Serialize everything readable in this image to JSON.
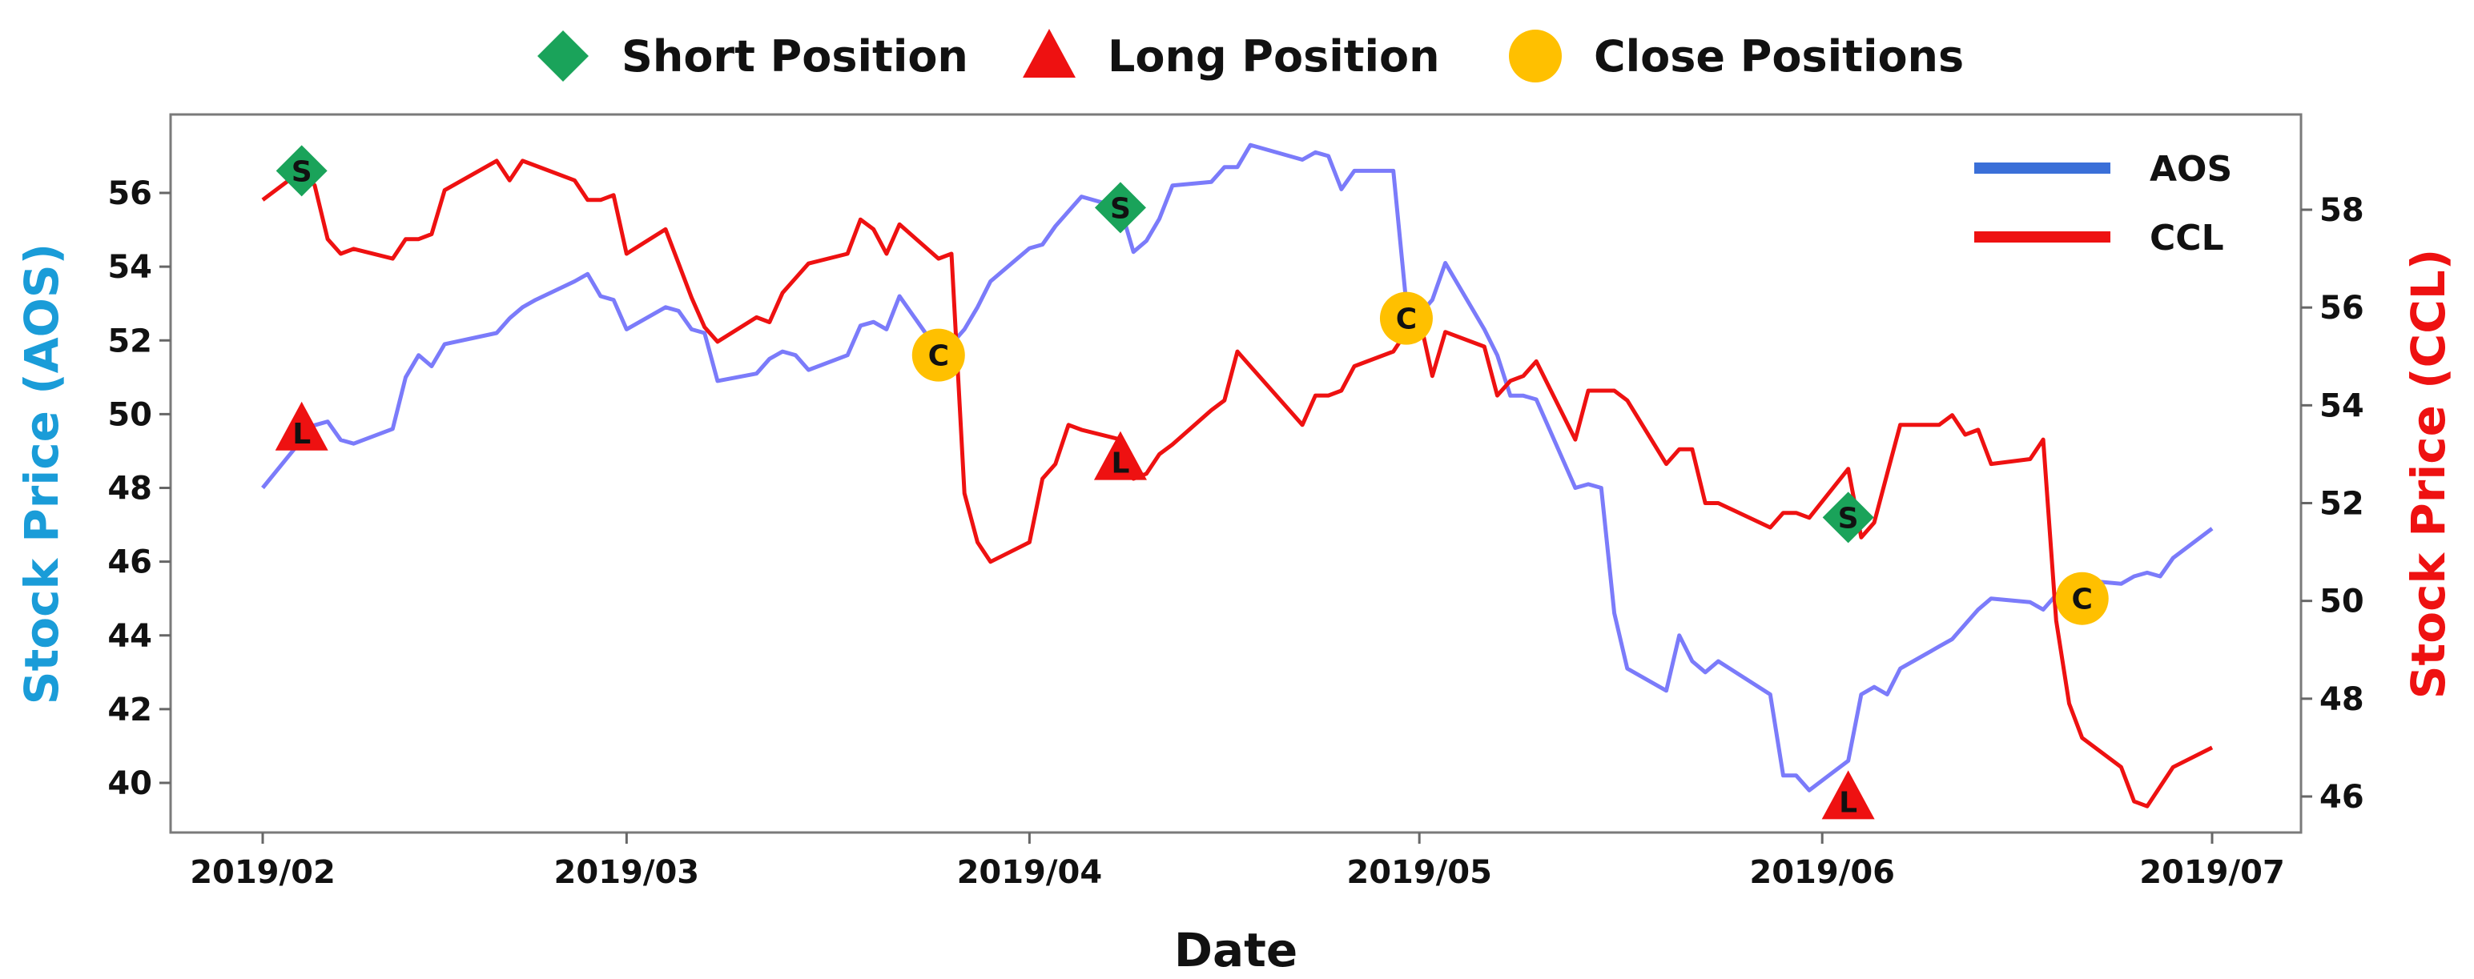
{
  "legend": {
    "items": [
      {
        "label": "Short Position",
        "marker": "diamond",
        "color": "#1aa35a"
      },
      {
        "label": "Long Position",
        "marker": "triangle",
        "color": "#ee1111"
      },
      {
        "label": "Close Positions",
        "marker": "circle",
        "color": "#ffc000"
      }
    ]
  },
  "chart_data": {
    "type": "line",
    "title": "",
    "xlabel": "Date",
    "ylabel_left": "Stock Price (AOS)",
    "ylabel_right": "Stock Price (CCL)",
    "ylabel_left_color": "#1a9cd8",
    "ylabel_right_color": "#ee1111",
    "x_start": "2019-02-01",
    "x_end": "2019-07-01",
    "x_ticks": [
      {
        "date": "2019-02-01",
        "label": "2019/02"
      },
      {
        "date": "2019-03-01",
        "label": "2019/03"
      },
      {
        "date": "2019-04-01",
        "label": "2019/04"
      },
      {
        "date": "2019-05-01",
        "label": "2019/05"
      },
      {
        "date": "2019-06-01",
        "label": "2019/06"
      },
      {
        "date": "2019-07-01",
        "label": "2019/07"
      }
    ],
    "ylim_left": [
      38.5,
      57.5
    ],
    "ylim_right": [
      45.3,
      59.7
    ],
    "yticks_left": [
      40,
      42,
      44,
      46,
      48,
      50,
      52,
      54,
      56
    ],
    "yticks_right": [
      46,
      48,
      50,
      52,
      54,
      56,
      58
    ],
    "grid": false,
    "series_legend_placement": "top-right",
    "series": [
      {
        "name": "AOS",
        "axis": "left",
        "color": "#7b7bfa",
        "legend_color": "#3a6fd8",
        "points": [
          [
            "2019-02-01",
            48.0
          ],
          [
            "2019-02-04",
            49.3
          ],
          [
            "2019-02-05",
            49.7
          ],
          [
            "2019-02-06",
            49.8
          ],
          [
            "2019-02-07",
            49.3
          ],
          [
            "2019-02-08",
            49.2
          ],
          [
            "2019-02-11",
            49.6
          ],
          [
            "2019-02-12",
            51.0
          ],
          [
            "2019-02-13",
            51.6
          ],
          [
            "2019-02-14",
            51.3
          ],
          [
            "2019-02-15",
            51.9
          ],
          [
            "2019-02-19",
            52.2
          ],
          [
            "2019-02-20",
            52.6
          ],
          [
            "2019-02-21",
            52.9
          ],
          [
            "2019-02-22",
            53.1
          ],
          [
            "2019-02-25",
            53.6
          ],
          [
            "2019-02-26",
            53.8
          ],
          [
            "2019-02-27",
            53.2
          ],
          [
            "2019-02-28",
            53.1
          ],
          [
            "2019-03-01",
            52.3
          ],
          [
            "2019-03-04",
            52.9
          ],
          [
            "2019-03-05",
            52.8
          ],
          [
            "2019-03-06",
            52.3
          ],
          [
            "2019-03-07",
            52.2
          ],
          [
            "2019-03-08",
            50.9
          ],
          [
            "2019-03-11",
            51.1
          ],
          [
            "2019-03-12",
            51.5
          ],
          [
            "2019-03-13",
            51.7
          ],
          [
            "2019-03-14",
            51.6
          ],
          [
            "2019-03-15",
            51.2
          ],
          [
            "2019-03-18",
            51.6
          ],
          [
            "2019-03-19",
            52.4
          ],
          [
            "2019-03-20",
            52.5
          ],
          [
            "2019-03-21",
            52.3
          ],
          [
            "2019-03-22",
            53.2
          ],
          [
            "2019-03-25",
            51.7
          ],
          [
            "2019-03-26",
            51.9
          ],
          [
            "2019-03-27",
            52.3
          ],
          [
            "2019-03-28",
            52.9
          ],
          [
            "2019-03-29",
            53.6
          ],
          [
            "2019-04-01",
            54.5
          ],
          [
            "2019-04-02",
            54.6
          ],
          [
            "2019-04-03",
            55.1
          ],
          [
            "2019-04-04",
            55.5
          ],
          [
            "2019-04-05",
            55.9
          ],
          [
            "2019-04-08",
            55.6
          ],
          [
            "2019-04-09",
            54.4
          ],
          [
            "2019-04-10",
            54.7
          ],
          [
            "2019-04-11",
            55.3
          ],
          [
            "2019-04-12",
            56.2
          ],
          [
            "2019-04-15",
            56.3
          ],
          [
            "2019-04-16",
            56.7
          ],
          [
            "2019-04-17",
            56.7
          ],
          [
            "2019-04-18",
            57.3
          ],
          [
            "2019-04-22",
            56.9
          ],
          [
            "2019-04-23",
            57.1
          ],
          [
            "2019-04-24",
            57.0
          ],
          [
            "2019-04-25",
            56.1
          ],
          [
            "2019-04-26",
            56.6
          ],
          [
            "2019-04-29",
            56.6
          ],
          [
            "2019-04-30",
            53.0
          ],
          [
            "2019-05-01",
            52.7
          ],
          [
            "2019-05-02",
            53.1
          ],
          [
            "2019-05-03",
            54.1
          ],
          [
            "2019-05-06",
            52.3
          ],
          [
            "2019-05-07",
            51.6
          ],
          [
            "2019-05-08",
            50.5
          ],
          [
            "2019-05-09",
            50.5
          ],
          [
            "2019-05-10",
            50.4
          ],
          [
            "2019-05-13",
            48.0
          ],
          [
            "2019-05-14",
            48.1
          ],
          [
            "2019-05-15",
            48.0
          ],
          [
            "2019-05-16",
            44.6
          ],
          [
            "2019-05-17",
            43.1
          ],
          [
            "2019-05-20",
            42.5
          ],
          [
            "2019-05-21",
            44.0
          ],
          [
            "2019-05-22",
            43.3
          ],
          [
            "2019-05-23",
            43.0
          ],
          [
            "2019-05-24",
            43.3
          ],
          [
            "2019-05-28",
            42.4
          ],
          [
            "2019-05-29",
            40.2
          ],
          [
            "2019-05-30",
            40.2
          ],
          [
            "2019-05-31",
            39.8
          ],
          [
            "2019-06-03",
            40.6
          ],
          [
            "2019-06-04",
            42.4
          ],
          [
            "2019-06-05",
            42.6
          ],
          [
            "2019-06-06",
            42.4
          ],
          [
            "2019-06-07",
            43.1
          ],
          [
            "2019-06-10",
            43.7
          ],
          [
            "2019-06-11",
            43.9
          ],
          [
            "2019-06-12",
            44.3
          ],
          [
            "2019-06-13",
            44.7
          ],
          [
            "2019-06-14",
            45.0
          ],
          [
            "2019-06-17",
            44.9
          ],
          [
            "2019-06-18",
            44.7
          ],
          [
            "2019-06-19",
            45.1
          ],
          [
            "2019-06-20",
            45.3
          ],
          [
            "2019-06-21",
            45.5
          ],
          [
            "2019-06-24",
            45.4
          ],
          [
            "2019-06-25",
            45.6
          ],
          [
            "2019-06-26",
            45.7
          ],
          [
            "2019-06-27",
            45.6
          ],
          [
            "2019-06-28",
            46.1
          ],
          [
            "2019-07-01",
            46.9
          ]
        ]
      },
      {
        "name": "CCL",
        "axis": "right",
        "color": "#ee1111",
        "legend_color": "#ee1111",
        "points": [
          [
            "2019-02-01",
            58.2
          ],
          [
            "2019-02-04",
            58.8
          ],
          [
            "2019-02-05",
            58.5
          ],
          [
            "2019-02-06",
            57.4
          ],
          [
            "2019-02-07",
            57.1
          ],
          [
            "2019-02-08",
            57.2
          ],
          [
            "2019-02-11",
            57.0
          ],
          [
            "2019-02-12",
            57.4
          ],
          [
            "2019-02-13",
            57.4
          ],
          [
            "2019-02-14",
            57.5
          ],
          [
            "2019-02-15",
            58.4
          ],
          [
            "2019-02-19",
            59.0
          ],
          [
            "2019-02-20",
            58.6
          ],
          [
            "2019-02-21",
            59.0
          ],
          [
            "2019-02-22",
            58.9
          ],
          [
            "2019-02-25",
            58.6
          ],
          [
            "2019-02-26",
            58.2
          ],
          [
            "2019-02-27",
            58.2
          ],
          [
            "2019-02-28",
            58.3
          ],
          [
            "2019-03-01",
            57.1
          ],
          [
            "2019-03-04",
            57.6
          ],
          [
            "2019-03-05",
            56.9
          ],
          [
            "2019-03-06",
            56.2
          ],
          [
            "2019-03-07",
            55.6
          ],
          [
            "2019-03-08",
            55.3
          ],
          [
            "2019-03-11",
            55.8
          ],
          [
            "2019-03-12",
            55.7
          ],
          [
            "2019-03-13",
            56.3
          ],
          [
            "2019-03-14",
            56.6
          ],
          [
            "2019-03-15",
            56.9
          ],
          [
            "2019-03-18",
            57.1
          ],
          [
            "2019-03-19",
            57.8
          ],
          [
            "2019-03-20",
            57.6
          ],
          [
            "2019-03-21",
            57.1
          ],
          [
            "2019-03-22",
            57.7
          ],
          [
            "2019-03-25",
            57.0
          ],
          [
            "2019-03-26",
            57.1
          ],
          [
            "2019-03-27",
            52.2
          ],
          [
            "2019-03-28",
            51.2
          ],
          [
            "2019-03-29",
            50.8
          ],
          [
            "2019-04-01",
            51.2
          ],
          [
            "2019-04-02",
            52.5
          ],
          [
            "2019-04-03",
            52.8
          ],
          [
            "2019-04-04",
            53.6
          ],
          [
            "2019-04-05",
            53.5
          ],
          [
            "2019-04-08",
            53.3
          ],
          [
            "2019-04-09",
            52.5
          ],
          [
            "2019-04-10",
            52.6
          ],
          [
            "2019-04-11",
            53.0
          ],
          [
            "2019-04-12",
            53.2
          ],
          [
            "2019-04-15",
            53.9
          ],
          [
            "2019-04-16",
            54.1
          ],
          [
            "2019-04-17",
            55.1
          ],
          [
            "2019-04-18",
            54.8
          ],
          [
            "2019-04-22",
            53.6
          ],
          [
            "2019-04-23",
            54.2
          ],
          [
            "2019-04-24",
            54.2
          ],
          [
            "2019-04-25",
            54.3
          ],
          [
            "2019-04-26",
            54.8
          ],
          [
            "2019-04-29",
            55.1
          ],
          [
            "2019-04-30",
            55.5
          ],
          [
            "2019-05-01",
            55.8
          ],
          [
            "2019-05-02",
            54.6
          ],
          [
            "2019-05-03",
            55.5
          ],
          [
            "2019-05-06",
            55.2
          ],
          [
            "2019-05-07",
            54.2
          ],
          [
            "2019-05-08",
            54.5
          ],
          [
            "2019-05-09",
            54.6
          ],
          [
            "2019-05-10",
            54.9
          ],
          [
            "2019-05-13",
            53.3
          ],
          [
            "2019-05-14",
            54.3
          ],
          [
            "2019-05-15",
            54.3
          ],
          [
            "2019-05-16",
            54.3
          ],
          [
            "2019-05-17",
            54.1
          ],
          [
            "2019-05-20",
            52.8
          ],
          [
            "2019-05-21",
            53.1
          ],
          [
            "2019-05-22",
            53.1
          ],
          [
            "2019-05-23",
            52.0
          ],
          [
            "2019-05-24",
            52.0
          ],
          [
            "2019-05-28",
            51.5
          ],
          [
            "2019-05-29",
            51.8
          ],
          [
            "2019-05-30",
            51.8
          ],
          [
            "2019-05-31",
            51.7
          ],
          [
            "2019-06-03",
            52.7
          ],
          [
            "2019-06-04",
            51.3
          ],
          [
            "2019-06-05",
            51.6
          ],
          [
            "2019-06-06",
            52.6
          ],
          [
            "2019-06-07",
            53.6
          ],
          [
            "2019-06-10",
            53.6
          ],
          [
            "2019-06-11",
            53.8
          ],
          [
            "2019-06-12",
            53.4
          ],
          [
            "2019-06-13",
            53.5
          ],
          [
            "2019-06-14",
            52.8
          ],
          [
            "2019-06-17",
            52.9
          ],
          [
            "2019-06-18",
            53.3
          ],
          [
            "2019-06-19",
            49.6
          ],
          [
            "2019-06-20",
            47.9
          ],
          [
            "2019-06-21",
            47.2
          ],
          [
            "2019-06-24",
            46.6
          ],
          [
            "2019-06-25",
            45.9
          ],
          [
            "2019-06-26",
            45.8
          ],
          [
            "2019-06-27",
            46.2
          ],
          [
            "2019-06-28",
            46.6
          ],
          [
            "2019-07-01",
            47.0
          ]
        ]
      }
    ],
    "markers": [
      {
        "type": "short",
        "letter": "S",
        "date": "2019-02-04",
        "axis": "left",
        "y": 56.6
      },
      {
        "type": "long",
        "letter": "L",
        "date": "2019-02-04",
        "axis": "left",
        "y": 49.6
      },
      {
        "type": "close",
        "letter": "C",
        "date": "2019-03-25",
        "axis": "left",
        "y": 51.6
      },
      {
        "type": "short",
        "letter": "S",
        "date": "2019-04-08",
        "axis": "left",
        "y": 55.6
      },
      {
        "type": "long",
        "letter": "L",
        "date": "2019-04-08",
        "axis": "left",
        "y": 48.8
      },
      {
        "type": "close",
        "letter": "C",
        "date": "2019-04-30",
        "axis": "left",
        "y": 52.6
      },
      {
        "type": "short",
        "letter": "S",
        "date": "2019-06-03",
        "axis": "left",
        "y": 47.2
      },
      {
        "type": "long",
        "letter": "L",
        "date": "2019-06-03",
        "axis": "left",
        "y": 39.6
      },
      {
        "type": "close",
        "letter": "C",
        "date": "2019-06-21",
        "axis": "left",
        "y": 45.0
      }
    ],
    "marker_colors": {
      "short": "#1aa35a",
      "long": "#ee1111",
      "close": "#ffc000"
    }
  }
}
